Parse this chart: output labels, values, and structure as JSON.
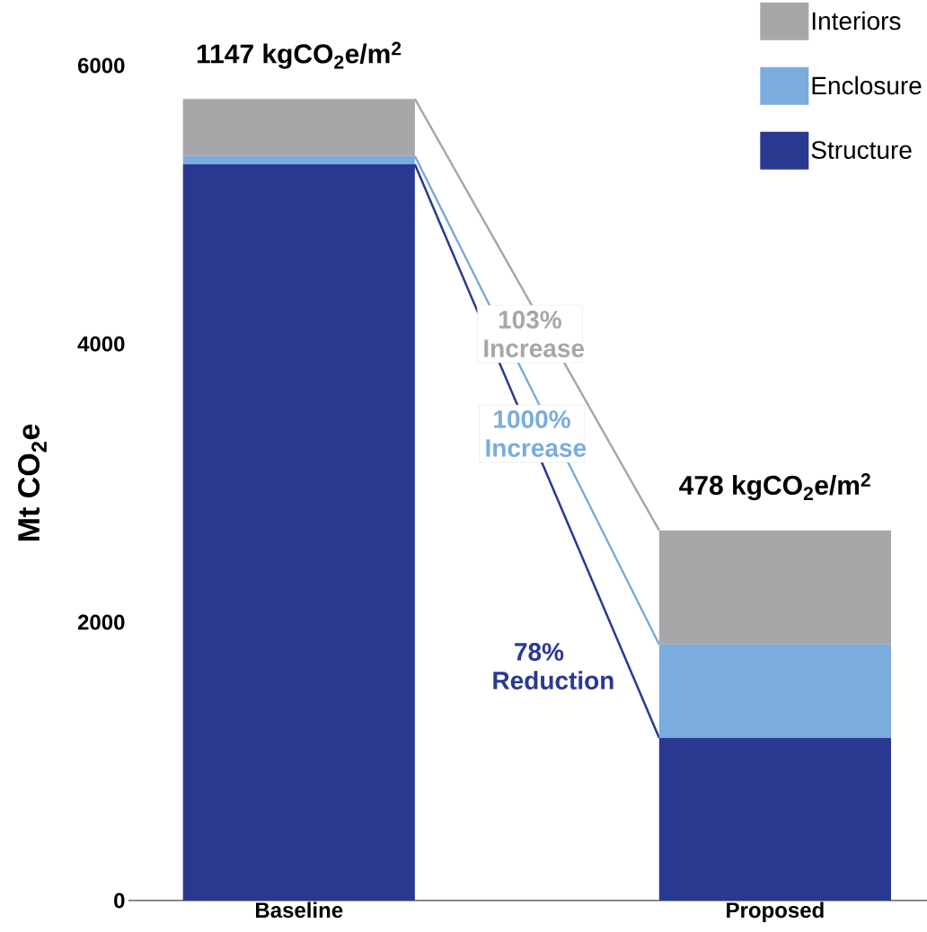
{
  "chart_data": {
    "type": "bar",
    "stacked": true,
    "categories": [
      "Baseline",
      "Proposed"
    ],
    "series": [
      {
        "name": "Structure",
        "color": "#2a3990",
        "values": [
          5290,
          1170
        ]
      },
      {
        "name": "Enclosure",
        "color": "#7aacdd",
        "values": [
          60,
          670
        ]
      },
      {
        "name": "Interiors",
        "color": "#a7a7aa",
        "values": [
          410,
          820
        ]
      }
    ],
    "ylabel": "Mt CO$_{2}$e",
    "ylim": [
      0,
      6000
    ],
    "yticks": [
      0,
      2000,
      4000,
      6000
    ],
    "legend": "top right",
    "annotations": [
      "1147 kgCO$_{2}$e/m$^{2}$",
      "478 kgCO$_{2}$e/m$^{2}$",
      "103% Increase",
      "1000% Increase",
      "78% Reduction"
    ]
  }
}
